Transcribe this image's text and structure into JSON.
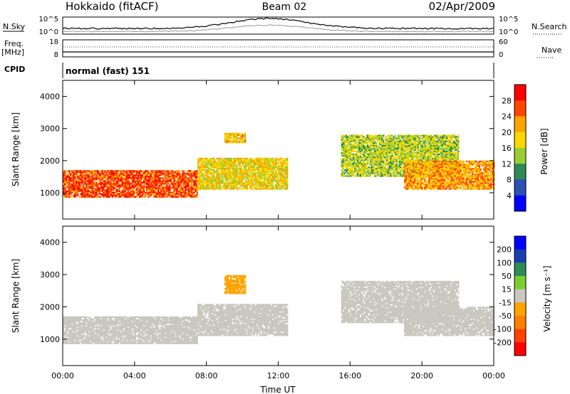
{
  "header": {
    "site": "Hokkaido (fitACF)",
    "beam": "Beam 02",
    "date": "02/Apr/2009"
  },
  "strip": {
    "nsky_label": "N.Sky",
    "nsky_ticks": [
      "10^5",
      "10^0"
    ],
    "nsearch_label": "N.Search",
    "nsearch_ticks": [
      "10^5",
      "10^0"
    ],
    "freq_label_1": "Freq.",
    "freq_label_2": "[MHz]",
    "freq_ticks": [
      "18",
      "8"
    ],
    "nave_label": "Nave",
    "nave_ticks": [
      "60",
      "0"
    ],
    "cpid_label": "CPID",
    "cpid_value": "normal (fast) 151"
  },
  "colors": {
    "power": [
      "#0000ff",
      "#2a4fb5",
      "#2e8b57",
      "#9acd32",
      "#ffd700",
      "#ffa500",
      "#ff4500",
      "#ff0000"
    ],
    "velocity": [
      "#0000ff",
      "#1a3fb0",
      "#2e8b57",
      "#7ccd32",
      "#c8c8c0",
      "#ffa500",
      "#ff7f00",
      "#ff4000",
      "#ff0000"
    ],
    "ground_scatter": "#c8c8c0"
  },
  "chart_data": [
    {
      "type": "heatmap",
      "name": "power",
      "ylabel": "Slant Range [km]",
      "y_ticks": [
        "1000",
        "2000",
        "3000",
        "4000"
      ],
      "ylim": [
        180,
        4500
      ],
      "x_ticks": [
        "00:00",
        "04:00",
        "08:00",
        "12:00",
        "16:00",
        "20:00",
        "00:00"
      ],
      "xlim_hours": [
        0,
        24
      ],
      "colorbar_label": "Power [dB]",
      "colorbar_ticks": [
        "4",
        "8",
        "12",
        "16",
        "20",
        "24",
        "28"
      ],
      "scale": [
        0,
        32
      ],
      "regions": [
        {
          "t": [
            0,
            7.5
          ],
          "r": [
            850,
            1700
          ],
          "value": 26
        },
        {
          "t": [
            7.5,
            12.5
          ],
          "r": [
            1100,
            2050
          ],
          "value": 18
        },
        {
          "t": [
            9,
            10.2
          ],
          "r": [
            2550,
            2850
          ],
          "value": 20
        },
        {
          "t": [
            15.5,
            22
          ],
          "r": [
            1500,
            2800
          ],
          "value": 15
        },
        {
          "t": [
            19,
            24
          ],
          "r": [
            1100,
            2000
          ],
          "value": 22
        }
      ]
    },
    {
      "type": "heatmap",
      "name": "velocity",
      "ylabel": "Slant Range [km]",
      "y_ticks": [
        "1000",
        "2000",
        "3000",
        "4000"
      ],
      "ylim": [
        180,
        4500
      ],
      "x_ticks": [
        "00:00",
        "04:00",
        "08:00",
        "12:00",
        "16:00",
        "20:00",
        "00:00"
      ],
      "xlim_hours": [
        0,
        24
      ],
      "xlabel": "Time UT",
      "colorbar_label": "Velocity [m s⁻¹]",
      "colorbar_ticks": [
        "200",
        "100",
        "50",
        "15",
        "-15",
        "-50",
        "-100",
        "-200"
      ],
      "regions": [
        {
          "t": [
            0,
            7.5
          ],
          "r": [
            850,
            1700
          ],
          "value": 0,
          "ground_scatter": true
        },
        {
          "t": [
            7.5,
            12.5
          ],
          "r": [
            1100,
            2050
          ],
          "value": -5,
          "ground_scatter": true
        },
        {
          "t": [
            9,
            10.2
          ],
          "r": [
            2400,
            2950
          ],
          "value": -40
        },
        {
          "t": [
            15.5,
            22
          ],
          "r": [
            1500,
            2800
          ],
          "value": 0,
          "ground_scatter": true
        },
        {
          "t": [
            19,
            24
          ],
          "r": [
            1100,
            2000
          ],
          "value": 0,
          "ground_scatter": true
        }
      ]
    }
  ]
}
